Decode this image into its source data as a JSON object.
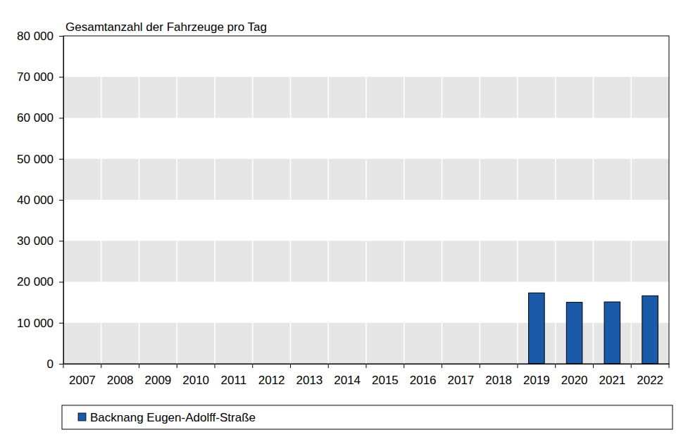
{
  "chart_data": {
    "type": "bar",
    "title": "Gesamtanzahl der Fahrzeuge pro Tag",
    "categories": [
      "2007",
      "2008",
      "2009",
      "2010",
      "2011",
      "2012",
      "2013",
      "2014",
      "2015",
      "2016",
      "2017",
      "2018",
      "2019",
      "2020",
      "2021",
      "2022"
    ],
    "series": [
      {
        "name": "Backnang Eugen-Adolff-Straße",
        "color": "#1a5aa8",
        "values": [
          null,
          null,
          null,
          null,
          null,
          null,
          null,
          null,
          null,
          null,
          null,
          null,
          17300,
          15000,
          15100,
          16600
        ]
      }
    ],
    "ylim": [
      0,
      80000
    ],
    "yticks": [
      0,
      {
        "value": 10000,
        "label": "10 000"
      },
      {
        "value": 20000,
        "label": "20 000"
      },
      {
        "value": 30000,
        "label": "30 000"
      },
      {
        "value": 40000,
        "label": "40 000"
      },
      {
        "value": 50000,
        "label": "50 000"
      },
      {
        "value": 60000,
        "label": "60 000"
      },
      {
        "value": 70000,
        "label": "70 000"
      },
      {
        "value": 80000,
        "label": "80 000"
      }
    ],
    "grid": true,
    "legend": "bottom"
  }
}
